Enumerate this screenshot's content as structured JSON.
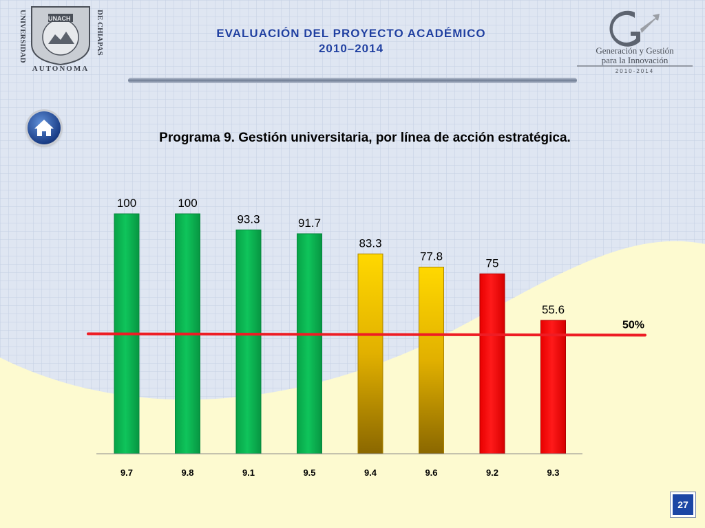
{
  "header": {
    "title_line1": "EVALUACIÓN DEL PROYECTO ACADÉMICO",
    "title_line2": "2010–2014"
  },
  "logo_left": {
    "name": "UNACH",
    "text_left": "UNIVERSIDAD",
    "text_right": "DE CHIAPAS",
    "text_bottom": "AUTONOMA"
  },
  "logo_right": {
    "line1": "Generación y Gestión",
    "line2": "para la Innovación",
    "years": "2010-2014"
  },
  "home_button": {
    "icon": "home-icon"
  },
  "page_number": "27",
  "colors": {
    "green": "#08b54f",
    "yellow": "#ffd200",
    "red": "#ff0a0a",
    "reference": "#ee1c24",
    "title_blue": "#1f3fa0"
  },
  "chart_data": {
    "type": "bar",
    "title": "Programa 9. Gestión universitaria, por línea de acción estratégica.",
    "categories": [
      "9.7",
      "9.8",
      "9.1",
      "9.5",
      "9.4",
      "9.6",
      "9.2",
      "9.3"
    ],
    "values": [
      100,
      100,
      93.3,
      91.7,
      83.3,
      77.8,
      75,
      55.6
    ],
    "value_labels": [
      "100",
      "100",
      "93.3",
      "91.7",
      "83.3",
      "77.8",
      "75",
      "55.6"
    ],
    "bar_colors": [
      "green",
      "green",
      "green",
      "green",
      "yellow",
      "yellow",
      "red",
      "red"
    ],
    "reference_line": {
      "value": 50,
      "label": "50%"
    },
    "ylim": [
      0,
      100
    ],
    "grid": false
  }
}
